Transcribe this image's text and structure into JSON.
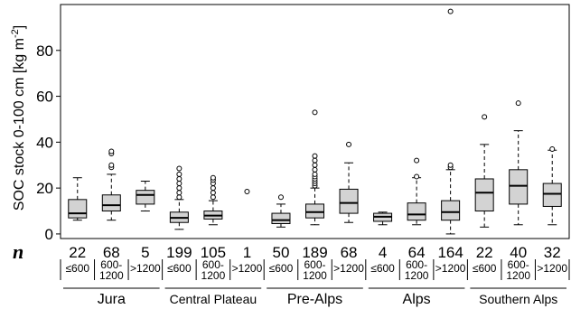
{
  "chart_data": {
    "type": "box",
    "ylabel": "SOC stock 0-100 cm [kg m",
    "ylabel_sup": "-2",
    "ylabel_end": "]",
    "ylim": [
      -2,
      100
    ],
    "yticks": [
      0,
      20,
      40,
      60,
      80
    ],
    "grid": false,
    "n_label": "n",
    "groups": [
      {
        "name": "Jura",
        "boxes": [
          {
            "category": "≤600",
            "n": "22",
            "whisker_low": 6,
            "q1": 7,
            "median": 9,
            "q3": 15,
            "whisker_high": 24.5,
            "outliers": []
          },
          {
            "category": "600-1200",
            "n": "68",
            "whisker_low": 6,
            "q1": 10,
            "median": 12.5,
            "q3": 17,
            "whisker_high": 26,
            "outliers": [
              29,
              30,
              35,
              36
            ]
          },
          {
            "category": ">1200",
            "n": "5",
            "whisker_low": 10,
            "q1": 13,
            "median": 17,
            "q3": 19,
            "whisker_high": 23,
            "outliers": []
          }
        ]
      },
      {
        "name": "Central Plateau",
        "boxes": [
          {
            "category": "≤600",
            "n": "199",
            "whisker_low": 2,
            "q1": 5,
            "median": 7,
            "q3": 9.5,
            "whisker_high": 15,
            "outliers": [
              16,
              18,
              20,
              22,
              24,
              26,
              28.5
            ]
          },
          {
            "category": "600-1200",
            "n": "105",
            "whisker_low": 4,
            "q1": 6.5,
            "median": 8,
            "q3": 10,
            "whisker_high": 14.5,
            "outliers": [
              16,
              18,
              20,
              22,
              23.5,
              24.5
            ]
          },
          {
            "category": ">1200",
            "n": "1",
            "whisker_low": null,
            "q1": null,
            "median": null,
            "q3": null,
            "whisker_high": null,
            "outliers": [
              18.5
            ]
          }
        ]
      },
      {
        "name": "Pre-Alps",
        "boxes": [
          {
            "category": "≤600",
            "n": "50",
            "whisker_low": 3,
            "q1": 4.5,
            "median": 6,
            "q3": 9,
            "whisker_high": 13,
            "outliers": [
              16
            ]
          },
          {
            "category": "600-1200",
            "n": "189",
            "whisker_low": 4,
            "q1": 7,
            "median": 9.5,
            "q3": 13,
            "whisker_high": 20,
            "outliers": [
              21,
              22,
              23,
              24,
              25,
              26,
              28,
              30,
              32,
              34,
              53
            ]
          },
          {
            "category": ">1200",
            "n": "68",
            "whisker_low": 5,
            "q1": 9,
            "median": 13.5,
            "q3": 19.5,
            "whisker_high": 31,
            "outliers": [
              39
            ]
          }
        ]
      },
      {
        "name": "Alps",
        "boxes": [
          {
            "category": "≤600",
            "n": "4",
            "whisker_low": 4,
            "q1": 5.5,
            "median": 7.5,
            "q3": 9,
            "whisker_high": 9.5,
            "outliers": []
          },
          {
            "category": "600-1200",
            "n": "64",
            "whisker_low": 4,
            "q1": 6,
            "median": 8.5,
            "q3": 13.5,
            "whisker_high": 24.5,
            "outliers": [
              25,
              32
            ]
          },
          {
            "category": ">1200",
            "n": "164",
            "whisker_low": 0,
            "q1": 6,
            "median": 9.5,
            "q3": 14.5,
            "whisker_high": 28,
            "outliers": [
              29,
              30,
              97
            ]
          }
        ]
      },
      {
        "name": "Southern Alps",
        "boxes": [
          {
            "category": "≤600",
            "n": "22",
            "whisker_low": 3,
            "q1": 10,
            "median": 18,
            "q3": 24,
            "whisker_high": 39,
            "outliers": [
              51
            ]
          },
          {
            "category": "600-1200",
            "n": "40",
            "whisker_low": 4,
            "q1": 13,
            "median": 21,
            "q3": 28,
            "whisker_high": 45,
            "outliers": [
              57
            ]
          },
          {
            "category": ">1200",
            "n": "32",
            "whisker_low": 4,
            "q1": 12,
            "median": 17.5,
            "q3": 22,
            "whisker_high": 36.5,
            "outliers": [
              37
            ]
          }
        ]
      }
    ]
  }
}
